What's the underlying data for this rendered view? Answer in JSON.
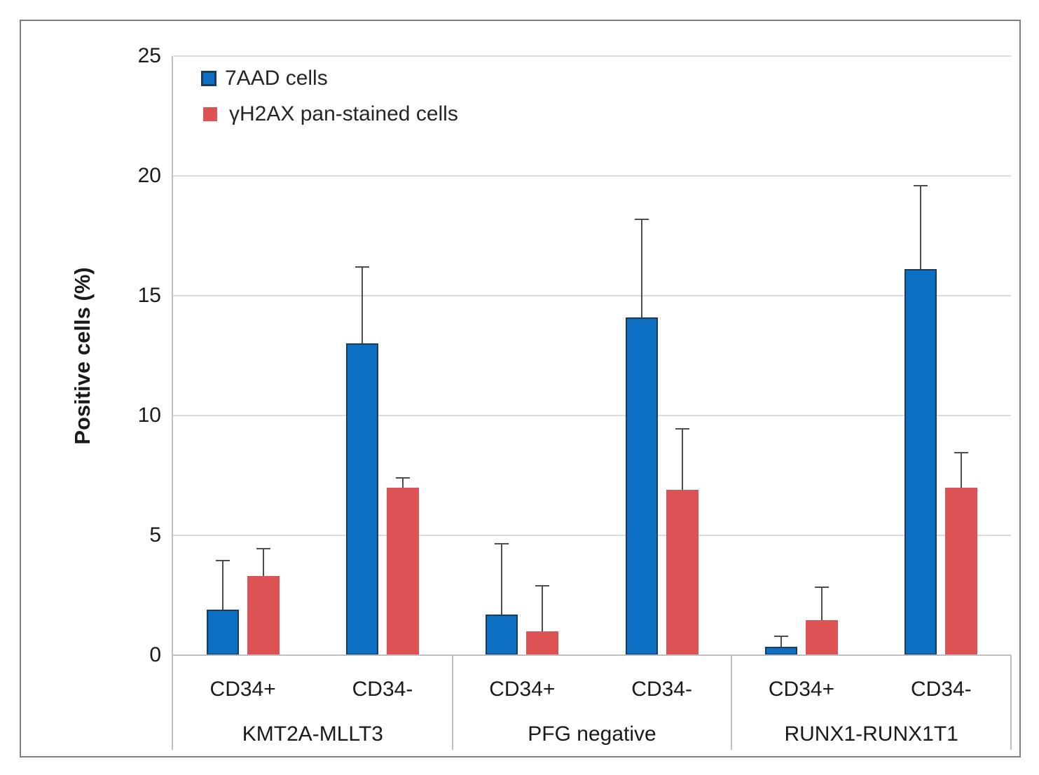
{
  "chart_data": {
    "type": "bar",
    "title": "",
    "xlabel": "",
    "ylabel": "Positive cells (%)",
    "ylim": [
      0,
      25
    ],
    "yticks": [
      0,
      5,
      10,
      15,
      20,
      25
    ],
    "grid": true,
    "legend_position": "top-left-inside",
    "groups": [
      "KMT2A-MLLT3",
      "PFG negative",
      "RUNX1-RUNX1T1"
    ],
    "subcategories": [
      "CD34+",
      "CD34-"
    ],
    "categories": [
      "KMT2A-MLLT3 CD34+",
      "KMT2A-MLLT3 CD34-",
      "PFG negative CD34+",
      "PFG negative CD34-",
      "RUNX1-RUNX1T1 CD34+",
      "RUNX1-RUNX1T1 CD34-"
    ],
    "series": [
      {
        "name": "7AAD cells",
        "color": "#0D6FC2",
        "border_color": "#1C3C5E",
        "values": [
          1.9,
          13.0,
          1.7,
          14.1,
          0.35,
          16.1
        ],
        "errors_up": [
          2.05,
          3.2,
          2.95,
          4.1,
          0.45,
          3.5
        ]
      },
      {
        "name": "γH2AX pan-stained cells",
        "color": "#DD5353",
        "border_color": null,
        "values": [
          3.3,
          7.0,
          1.0,
          6.9,
          1.45,
          7.0
        ],
        "errors_up": [
          1.15,
          0.4,
          1.9,
          2.55,
          1.4,
          1.45
        ]
      }
    ],
    "error_bar_color": "#4D4D4D",
    "gridline_color": "#DBDBDB",
    "axis_line_color": "#BFBFBF",
    "text_color": "#262626",
    "figure_border_color": "#808080"
  }
}
